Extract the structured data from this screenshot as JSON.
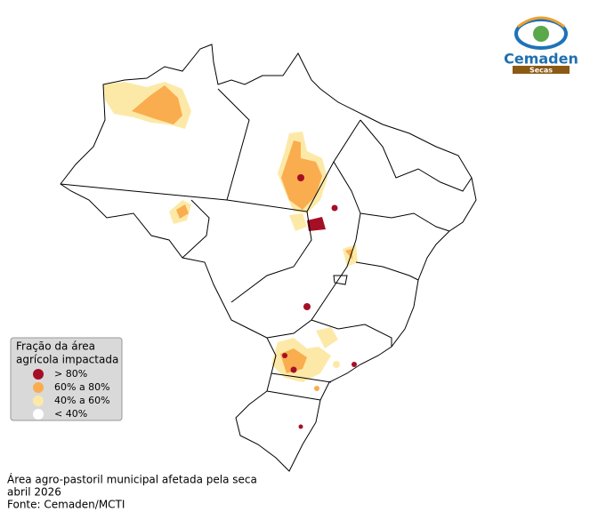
{
  "logo": {
    "name": "Cemaden",
    "tag": "Secas"
  },
  "legend": {
    "title": [
      "Fração da área",
      "agrícola impactada"
    ],
    "items": [
      {
        "label": "> 80%",
        "color": "#a50f26"
      },
      {
        "label": "60% a 80%",
        "color": "#f9ad4f"
      },
      {
        "label": "40% a 60%",
        "color": "#fde9a7"
      },
      {
        "label": "< 40%",
        "color": "#ffffff"
      }
    ]
  },
  "caption": [
    "Área agro-pastoril municipal afetada pela seca",
    "abril 2026",
    "Fonte: Cemaden/MCTI"
  ]
}
